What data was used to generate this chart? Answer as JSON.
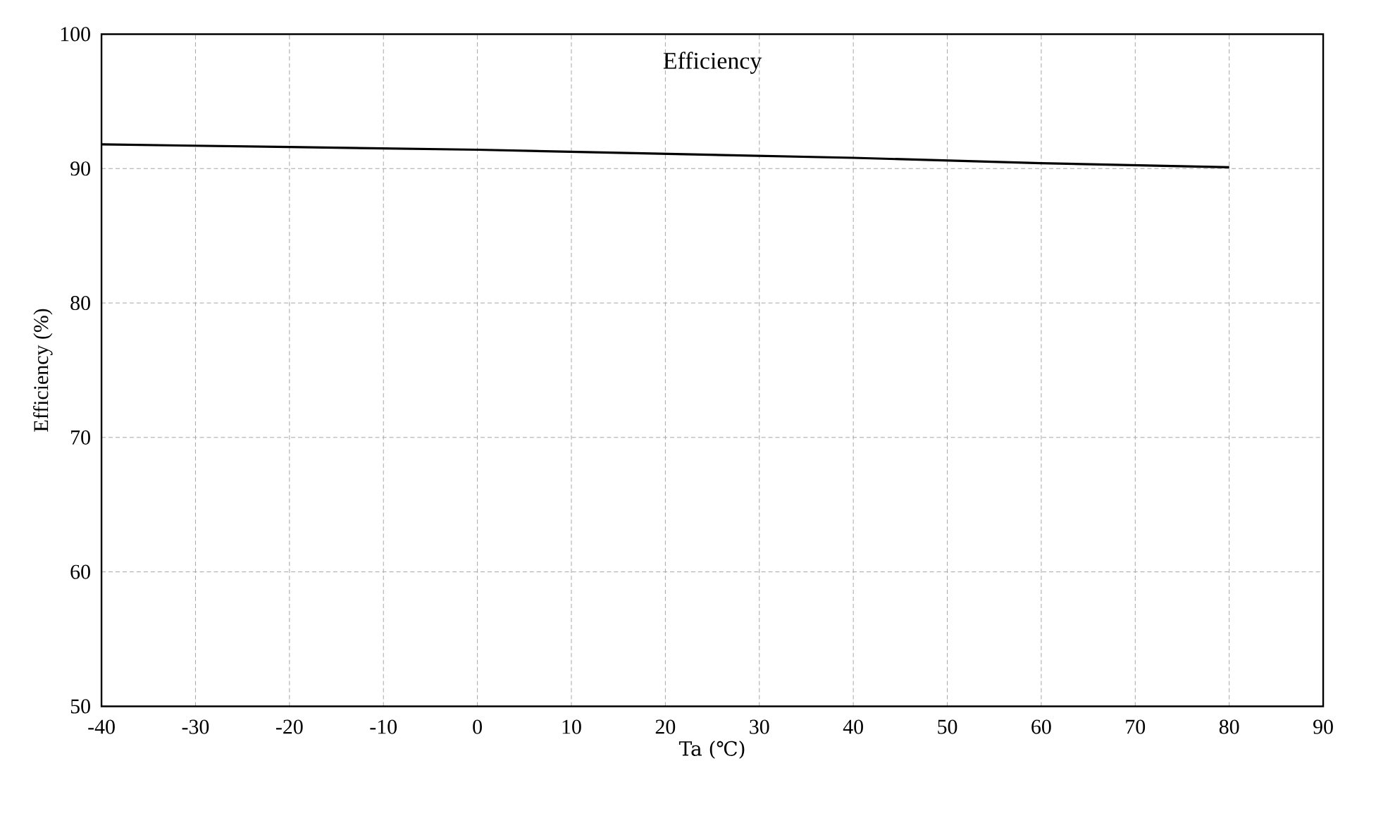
{
  "chart_data": {
    "type": "line",
    "title": "Efficiency",
    "xlabel": "Ta (℃)",
    "ylabel": "Efficiency (%)",
    "x": [
      -40,
      -20,
      0,
      20,
      40,
      60,
      80
    ],
    "series": [
      {
        "color": "#000000",
        "values": [
          91.8,
          91.6,
          91.4,
          91.1,
          90.8,
          90.4,
          90.1
        ]
      }
    ],
    "xlim": [
      -40,
      90
    ],
    "ylim": [
      50,
      100
    ],
    "xticks": [
      -40,
      -30,
      -20,
      -10,
      0,
      10,
      20,
      30,
      40,
      50,
      60,
      70,
      80,
      90
    ],
    "yticks": [
      50,
      60,
      70,
      80,
      90,
      100
    ],
    "grid": true,
    "marker": "none",
    "line_style": "solid"
  }
}
